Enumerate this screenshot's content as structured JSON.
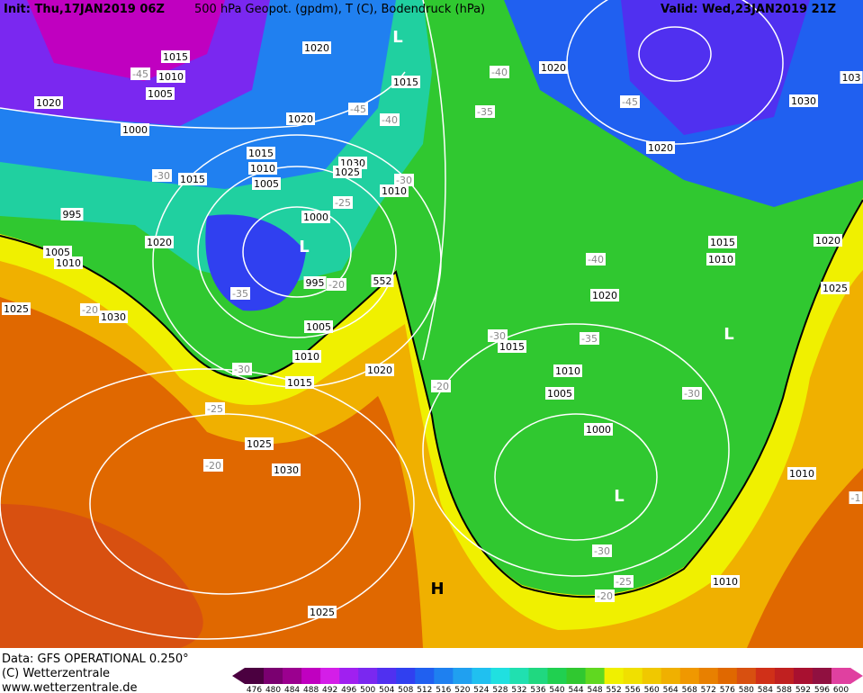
{
  "header": {
    "init": "Init: Thu,17JAN2019 06Z",
    "title": "500 hPa Geopot. (gpdm), T (C), Bodendruck (hPa)",
    "valid": "Valid: Wed,23JAN2019 21Z"
  },
  "footer": {
    "source": "Data: GFS OPERATIONAL 0.250°",
    "copyright": "(C) Wetterzentrale",
    "url": "www.wetterzentrale.de"
  },
  "colorbar": {
    "levels": [
      476,
      480,
      484,
      488,
      492,
      496,
      500,
      504,
      508,
      512,
      516,
      520,
      524,
      528,
      532,
      536,
      540,
      544,
      548,
      552,
      556,
      560,
      564,
      568,
      572,
      576,
      580,
      584,
      588,
      592,
      596,
      600
    ],
    "colors": [
      "#4b0040",
      "#7a0070",
      "#9b008f",
      "#c000c0",
      "#d41ee8",
      "#a020f0",
      "#7a28f0",
      "#5030f0",
      "#3040f0",
      "#2060f0",
      "#1e80f0",
      "#20a0f0",
      "#20c0f0",
      "#20e0e0",
      "#20e0b0",
      "#20d880",
      "#20d050",
      "#30c830",
      "#60d820",
      "#f0f000",
      "#f0e000",
      "#f0c800",
      "#f0b000",
      "#f09800",
      "#e88000",
      "#e06800",
      "#d85010",
      "#d03018",
      "#c02020",
      "#a81030",
      "#901040",
      "#e040a0"
    ]
  },
  "isobar_labels": [
    "1020",
    "1015",
    "1010",
    "1005",
    "1020",
    "1000",
    "1020",
    "1015",
    "1020",
    "1030",
    "1020",
    "1015",
    "1010",
    "1030",
    "1025",
    "1015",
    "1005",
    "1010",
    "1000",
    "995",
    "1020",
    "1005",
    "1010",
    "995",
    "1025",
    "1030",
    "1005",
    "1010",
    "1020",
    "1015",
    "1025",
    "1030",
    "1025",
    "1015",
    "1010",
    "1020",
    "1025",
    "1020",
    "1015",
    "1010",
    "1005",
    "1000",
    "1010",
    "1010",
    "103"
  ],
  "temperature_labels": [
    "-45",
    "-45",
    "-40",
    "-40",
    "-35",
    "-45",
    "-30",
    "-30",
    "-25",
    "-20",
    "-35",
    "-20",
    "-40",
    "-30",
    "-35",
    "-30",
    "-20",
    "-30",
    "-25",
    "-20",
    "-30",
    "-25",
    "-20",
    "-1"
  ],
  "center_labels": [
    "L",
    "L",
    "L",
    "L",
    "H"
  ],
  "contour_label": "552"
}
